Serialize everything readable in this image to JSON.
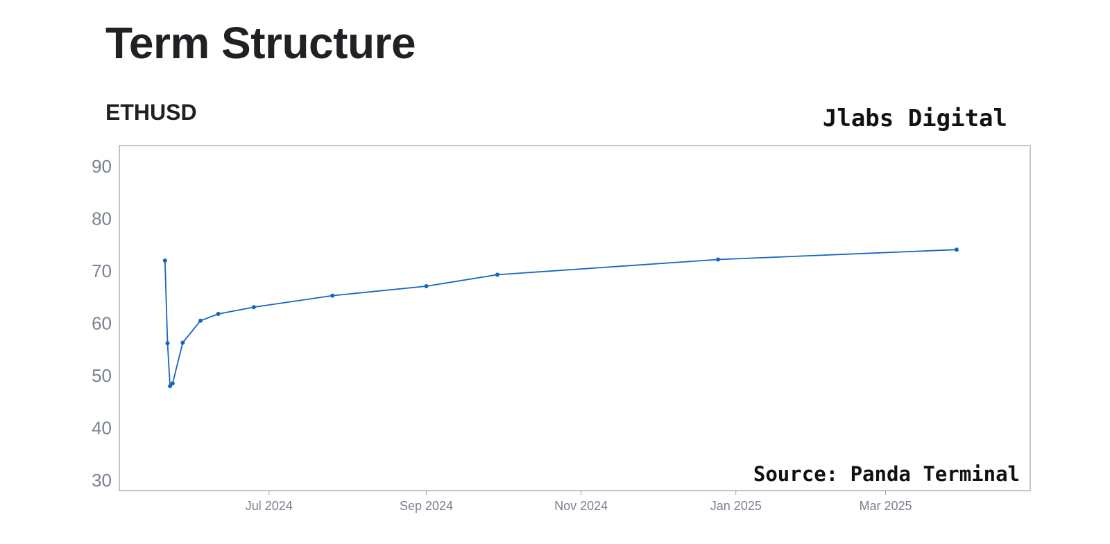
{
  "header": {
    "title": "Term Structure",
    "subtitle": "ETHUSD",
    "brand": "Jlabs Digital",
    "source": "Source: Panda Terminal"
  },
  "colors": {
    "line": "#1565c0",
    "axis": "#9e9e9e",
    "text": "#202124",
    "tick": "#7a8193"
  },
  "chart_data": {
    "type": "line",
    "title": "",
    "xlabel": "",
    "ylabel": "",
    "ylim": [
      28,
      94
    ],
    "xlim": [
      "2024-05-03",
      "2025-04-27"
    ],
    "grid": false,
    "y_ticks": [
      30,
      40,
      50,
      60,
      70,
      80,
      90
    ],
    "x_ticks": [
      {
        "date": "2024-07-01",
        "label": "Jul 2024"
      },
      {
        "date": "2024-09-01",
        "label": "Sep 2024"
      },
      {
        "date": "2024-11-01",
        "label": "Nov 2024"
      },
      {
        "date": "2025-01-01",
        "label": "Jan 2025"
      },
      {
        "date": "2025-03-01",
        "label": "Mar 2025"
      }
    ],
    "series": [
      {
        "x": [
          "2024-05-21",
          "2024-05-22",
          "2024-05-23",
          "2024-05-24",
          "2024-05-28",
          "2024-06-04",
          "2024-06-11",
          "2024-06-25",
          "2024-07-26",
          "2024-09-01",
          "2024-09-29",
          "2024-12-25",
          "2025-03-29"
        ],
        "values": [
          72.0,
          56.2,
          48.0,
          48.5,
          56.3,
          60.5,
          61.8,
          63.1,
          65.3,
          67.1,
          69.3,
          72.2,
          74.1
        ]
      }
    ]
  }
}
